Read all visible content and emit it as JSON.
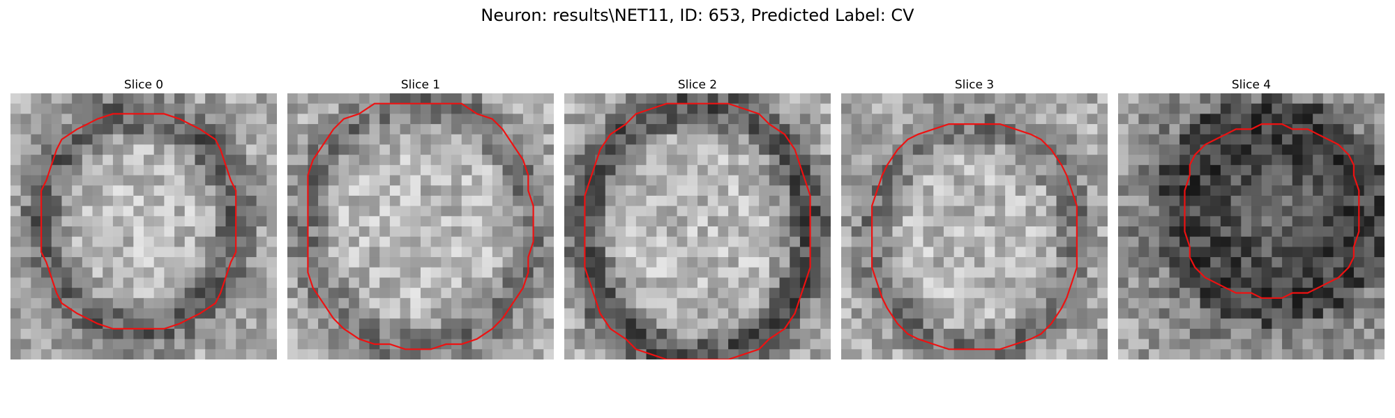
{
  "figure": {
    "title": "Neuron: results\\NET11, ID: 653, Predicted Label: CV",
    "contour_color": "#ee1111",
    "colormap": "grayscale"
  },
  "panels": [
    {
      "title": "Slice 0",
      "ring": "medium",
      "seed": 11
    },
    {
      "title": "Slice 1",
      "ring": "faint",
      "seed": 23
    },
    {
      "title": "Slice 2",
      "ring": "strong",
      "seed": 37
    },
    {
      "title": "Slice 3",
      "ring": "faint",
      "seed": 41
    },
    {
      "title": "Slice 4",
      "ring": "dark-interior",
      "seed": 59
    }
  ]
}
